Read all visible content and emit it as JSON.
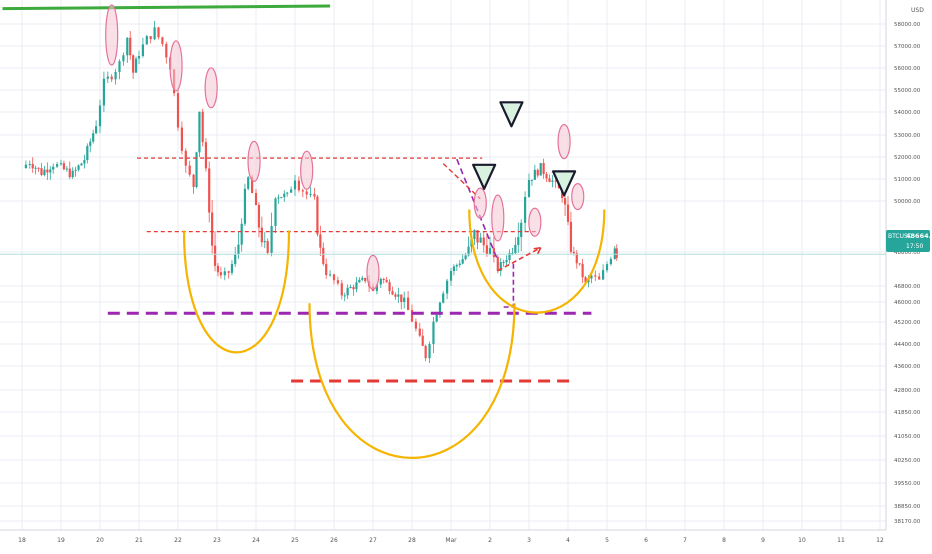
{
  "header": {
    "price_unit": "USD"
  },
  "price_tag": {
    "symbol": "BTCUSD",
    "price": "48664.69",
    "countdown": "17:50"
  },
  "colors": {
    "up": "#26a69a",
    "down": "#ef5350",
    "grid": "#e9eef3",
    "green_line": "#3caa3c",
    "purple": "#9c27b0",
    "red": "#e53935",
    "orange": "#f5b400",
    "pink_fill": "#f4c6d4",
    "pink_stroke": "#e57399",
    "triangle_fill": "#d9f2e0",
    "triangle_stroke": "#1a1a2e",
    "price_line": "#b2dfdb",
    "tag_bg": "#26a69a"
  },
  "chart_data": {
    "type": "candlestick",
    "title": "",
    "x_tick_labels": [
      "18",
      "19",
      "20",
      "21",
      "22",
      "23",
      "24",
      "25",
      "26",
      "27",
      "28",
      "Mar",
      "2",
      "3",
      "4",
      "5",
      "6",
      "7",
      "8",
      "9",
      "10",
      "11",
      "12"
    ],
    "y_tick_labels": [
      "58000.00",
      "57000.00",
      "56000.00",
      "55000.00",
      "54000.00",
      "53000.00",
      "52000.00",
      "51000.00",
      "50000.00",
      "48800.00",
      "46800.00",
      "46000.00",
      "45200.00",
      "44400.00",
      "43600.00",
      "42800.00",
      "41850.00",
      "41050.00",
      "40250.00",
      "39550.00",
      "38850.00",
      "38170.00"
    ],
    "ohlc_path": [
      [
        18,
        51500
      ],
      [
        18.2,
        51800
      ],
      [
        18.5,
        51300
      ],
      [
        18.8,
        51700
      ],
      [
        19.0,
        51500
      ],
      [
        19.3,
        51200
      ],
      [
        19.6,
        51900
      ],
      [
        19.9,
        53500
      ],
      [
        20.1,
        55300
      ],
      [
        20.3,
        55700
      ],
      [
        20.5,
        56200
      ],
      [
        20.7,
        57400
      ],
      [
        20.85,
        55800
      ],
      [
        21.0,
        56700
      ],
      [
        21.2,
        57300
      ],
      [
        21.4,
        57700
      ],
      [
        21.6,
        57100
      ],
      [
        21.8,
        56100
      ],
      [
        22.0,
        53500
      ],
      [
        22.2,
        51500
      ],
      [
        22.4,
        50700
      ],
      [
        22.55,
        54100
      ],
      [
        22.8,
        49900
      ],
      [
        22.95,
        48000
      ],
      [
        23.1,
        47300
      ],
      [
        23.3,
        47600
      ],
      [
        23.55,
        49000
      ],
      [
        23.8,
        51000
      ],
      [
        24.0,
        49700
      ],
      [
        24.3,
        48600
      ],
      [
        24.5,
        50300
      ],
      [
        24.8,
        50200
      ],
      [
        25.0,
        51100
      ],
      [
        25.1,
        50700
      ],
      [
        25.3,
        50300
      ],
      [
        25.5,
        50000
      ],
      [
        25.8,
        47600
      ],
      [
        26.0,
        47100
      ],
      [
        26.2,
        46400
      ],
      [
        26.5,
        46800
      ],
      [
        26.8,
        47200
      ],
      [
        27.0,
        46500
      ],
      [
        27.2,
        47300
      ],
      [
        27.5,
        46600
      ],
      [
        27.8,
        46000
      ],
      [
        28.0,
        45300
      ],
      [
        28.2,
        44500
      ],
      [
        28.35,
        44000
      ],
      [
        28.55,
        45200
      ],
      [
        28.8,
        46600
      ],
      [
        29.0,
        47700
      ],
      [
        29.3,
        48400
      ],
      [
        29.6,
        49200
      ],
      [
        30.0,
        48800
      ],
      [
        30.2,
        47800
      ],
      [
        30.5,
        48700
      ],
      [
        30.8,
        49600
      ],
      [
        31.0,
        51000
      ],
      [
        31.3,
        51500
      ],
      [
        31.6,
        50900
      ],
      [
        31.85,
        50300
      ],
      [
        32.0,
        49300
      ],
      [
        32.3,
        47900
      ],
      [
        32.45,
        46900
      ],
      [
        32.6,
        47400
      ],
      [
        32.8,
        47100
      ],
      [
        33.0,
        48100
      ],
      [
        33.2,
        49000
      ],
      [
        33.25,
        48600
      ]
    ],
    "annotations": {
      "green_trendline": [
        [
          17.5,
          58700
        ],
        [
          25.9,
          58820
        ]
      ],
      "purple_support": [
        [
          20.2,
          45550
        ],
        [
          32.6,
          45550
        ]
      ],
      "red_support": [
        [
          24.9,
          43100
        ],
        [
          32.1,
          43100
        ]
      ],
      "resistance_upper": [
        [
          20.95,
          51950
        ],
        [
          29.8,
          51950
        ]
      ],
      "resistance_mid": [
        [
          21.2,
          49280
        ],
        [
          31.2,
          49280
        ]
      ],
      "red_arrow_up": [
        [
          30.2,
          47700
        ],
        [
          31.3,
          48900
        ]
      ],
      "purple_dash_down": [
        [
          29.15,
          51900
        ],
        [
          30.2,
          48300
        ]
      ],
      "red_dash_down": [
        [
          28.8,
          51700
        ],
        [
          29.75,
          50100
        ]
      ],
      "purple_bracket_y": [
        45800,
        48200
      ],
      "cup_left": {
        "center": [
          23.5,
          43800
        ],
        "note": "orange cup under 22-24"
      },
      "cup_middle": {
        "center": [
          28.0,
          40000
        ]
      },
      "cup_right": {
        "center": [
          31.2,
          45300
        ]
      },
      "pink_ellipses_x": [
        20.3,
        21.95,
        23.95,
        25.3,
        27.0,
        29.75,
        31.9,
        32.25,
        22.85,
        30.2,
        31.15
      ],
      "triangle_markers_x": [
        29.85,
        30.55,
        31.9
      ]
    }
  }
}
